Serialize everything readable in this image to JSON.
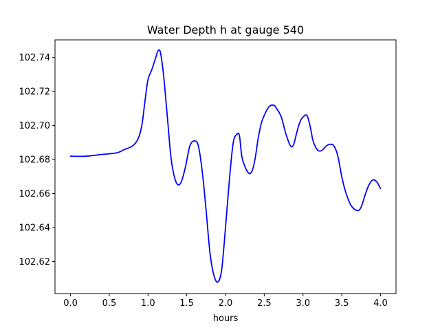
{
  "chart_data": {
    "type": "line",
    "title": "Water Depth h at gauge 540",
    "xlabel": "hours",
    "ylabel": "",
    "xlim": [
      -0.2,
      4.2
    ],
    "ylim": [
      102.6012,
      102.7504
    ],
    "xticks": [
      0.0,
      0.5,
      1.0,
      1.5,
      2.0,
      2.5,
      3.0,
      3.5,
      4.0
    ],
    "xtick_labels": [
      "0.0",
      "0.5",
      "1.0",
      "1.5",
      "2.0",
      "2.5",
      "3.0",
      "3.5",
      "4.0"
    ],
    "yticks": [
      102.62,
      102.64,
      102.66,
      102.68,
      102.7,
      102.72,
      102.74
    ],
    "ytick_labels": [
      "102.62",
      "102.64",
      "102.66",
      "102.68",
      "102.70",
      "102.72",
      "102.74"
    ],
    "grid": false,
    "series": [
      {
        "color": "#0000ff",
        "x": [
          0.0,
          0.2,
          0.4,
          0.6,
          0.7,
          0.8,
          0.87,
          0.92,
          0.96,
          1.0,
          1.05,
          1.1,
          1.13,
          1.16,
          1.2,
          1.25,
          1.3,
          1.36,
          1.42,
          1.48,
          1.54,
          1.6,
          1.65,
          1.7,
          1.75,
          1.8,
          1.85,
          1.9,
          1.95,
          2.0,
          2.05,
          2.1,
          2.15,
          2.18,
          2.21,
          2.25,
          2.3,
          2.34,
          2.38,
          2.42,
          2.46,
          2.5,
          2.56,
          2.62,
          2.66,
          2.72,
          2.78,
          2.84,
          2.88,
          2.92,
          2.96,
          3.0,
          3.05,
          3.09,
          3.13,
          3.18,
          3.22,
          3.26,
          3.3,
          3.35,
          3.4,
          3.45,
          3.5,
          3.55,
          3.62,
          3.7,
          3.75,
          3.8,
          3.85,
          3.9,
          3.95,
          4.0
        ],
        "y": [
          102.682,
          102.682,
          102.683,
          102.684,
          102.686,
          102.688,
          102.692,
          102.7,
          102.714,
          102.727,
          102.733,
          102.74,
          102.744,
          102.743,
          102.73,
          102.705,
          102.68,
          102.667,
          102.666,
          102.675,
          102.688,
          102.691,
          102.688,
          102.673,
          102.65,
          102.625,
          102.612,
          102.608,
          102.615,
          102.64,
          102.668,
          102.69,
          102.695,
          102.694,
          102.682,
          102.676,
          102.672,
          102.673,
          102.68,
          102.692,
          102.701,
          102.706,
          102.711,
          102.712,
          102.71,
          102.705,
          102.695,
          102.688,
          102.689,
          102.696,
          102.702,
          102.705,
          102.706,
          102.7,
          102.691,
          102.686,
          102.685,
          102.686,
          102.688,
          102.689,
          102.688,
          102.682,
          102.67,
          102.661,
          102.653,
          102.65,
          102.652,
          102.659,
          102.665,
          102.668,
          102.667,
          102.663
        ]
      }
    ]
  }
}
